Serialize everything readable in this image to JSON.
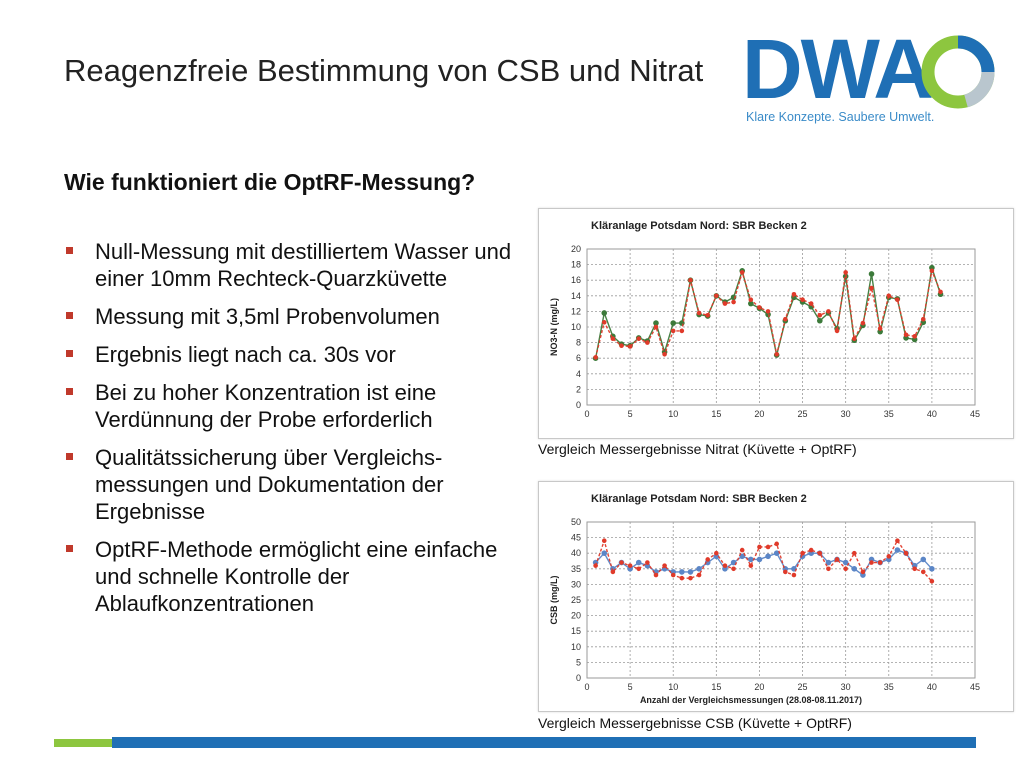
{
  "title": "Reagenzfreie Bestimmung von CSB und Nitrat",
  "subtitle": "Wie funktioniert die OptRF-Messung?",
  "logo": {
    "text": "DWA",
    "tagline": "Klare Konzepte. Saubere Umwelt."
  },
  "bullets": [
    "Null-Messung mit destilliertem Wasser und einer 10mm Rechteck-Quarzküvette",
    "Messung mit 3,5ml Probenvolumen",
    "Ergebnis liegt nach ca. 30s vor",
    "Bei zu hoher Konzentration ist eine Verdünnung der Probe erforderlich",
    "Qualitätssicherung über Vergleichs-messungen und Dokumentation der Ergebnisse",
    "OptRF-Methode ermöglicht eine einfache und schnelle Kontrolle der Ablaufkonzentrationen"
  ],
  "captions": {
    "nitrate": "Vergleich Messergebnisse Nitrat (Küvette + OptRF)",
    "csb": "Vergleich Messergebnisse CSB (Küvette + OptRF)"
  },
  "colors": {
    "accent_green": "#8dc63f",
    "accent_blue": "#1f6fb5",
    "series_red": "#e03a2a",
    "series_green": "#3c7a3a",
    "series_blue": "#5b86c7"
  },
  "chart_data": [
    {
      "type": "line",
      "title": "Kläranlage Potsdam Nord: SBR Becken 2",
      "xlabel": "",
      "ylabel": "NO3-N (mg/L)",
      "xlim": [
        0,
        45
      ],
      "ylim": [
        0,
        20
      ],
      "xticks": [
        0,
        5,
        10,
        15,
        20,
        25,
        30,
        35,
        40,
        45
      ],
      "yticks": [
        0,
        2,
        4,
        6,
        8,
        10,
        12,
        14,
        16,
        18,
        20
      ],
      "grid": true,
      "legend": "none",
      "x": [
        1,
        2,
        3,
        4,
        5,
        6,
        7,
        8,
        9,
        10,
        11,
        12,
        13,
        14,
        15,
        16,
        17,
        18,
        19,
        20,
        21,
        22,
        23,
        24,
        25,
        26,
        27,
        28,
        29,
        30,
        31,
        32,
        33,
        34,
        35,
        36,
        37,
        38,
        39,
        40,
        41
      ],
      "series": [
        {
          "values": [
            6.1,
            10.6,
            8.5,
            7.6,
            7.5,
            8.5,
            8.0,
            10.0,
            6.5,
            9.5,
            9.5,
            16.0,
            11.8,
            11.5,
            14.0,
            13.0,
            13.2,
            17.0,
            13.5,
            12.5,
            12.0,
            6.5,
            11.0,
            14.2,
            13.5,
            13.0,
            11.5,
            12.0,
            9.5,
            17.0,
            8.5,
            10.5,
            15.0,
            9.8,
            14.0,
            13.5,
            9.0,
            8.8,
            11.0,
            17.2,
            14.5
          ]
        },
        {
          "values": [
            6.0,
            11.8,
            8.8,
            7.8,
            7.6,
            8.6,
            8.2,
            10.5,
            6.8,
            10.5,
            10.5,
            16.0,
            11.6,
            11.4,
            14.0,
            13.2,
            13.8,
            17.2,
            13.0,
            12.4,
            11.6,
            6.4,
            10.8,
            13.8,
            13.2,
            12.6,
            10.8,
            11.8,
            9.8,
            16.5,
            8.3,
            10.2,
            16.8,
            9.4,
            13.8,
            13.6,
            8.6,
            8.4,
            10.6,
            17.6,
            14.2
          ]
        }
      ]
    },
    {
      "type": "line",
      "title": "Kläranlage Potsdam Nord: SBR Becken 2",
      "xlabel": "Anzahl der Vergleichsmessungen (28.08-08.11.2017)",
      "ylabel": "CSB (mg/L)",
      "xlim": [
        0,
        45
      ],
      "ylim": [
        0,
        50
      ],
      "xticks": [
        0,
        5,
        10,
        15,
        20,
        25,
        30,
        35,
        40,
        45
      ],
      "yticks": [
        0,
        5,
        10,
        15,
        20,
        25,
        30,
        35,
        40,
        45,
        50
      ],
      "grid": true,
      "legend": "none",
      "x": [
        1,
        2,
        3,
        4,
        5,
        6,
        7,
        8,
        9,
        10,
        11,
        12,
        13,
        14,
        15,
        16,
        17,
        18,
        19,
        20,
        21,
        22,
        23,
        24,
        25,
        26,
        27,
        28,
        29,
        30,
        31,
        32,
        33,
        34,
        35,
        36,
        37,
        38,
        39,
        40
      ],
      "series": [
        {
          "values": [
            36,
            44,
            34,
            37,
            36,
            35,
            37,
            33,
            36,
            33,
            32,
            32,
            33,
            38,
            40,
            36,
            35,
            41,
            36,
            42,
            42,
            43,
            34,
            33,
            40,
            41,
            40,
            35,
            38,
            35,
            40,
            34,
            37,
            37,
            39,
            44,
            40,
            35,
            34,
            31
          ]
        },
        {
          "values": [
            37,
            40,
            35,
            37,
            35,
            37,
            36,
            34,
            35,
            34,
            34,
            34,
            35,
            37,
            39,
            35,
            37,
            39,
            38,
            38,
            39,
            40,
            35,
            35,
            39,
            40,
            40,
            37,
            38,
            37,
            35,
            33,
            38,
            37,
            38,
            41,
            40,
            36,
            38,
            35
          ]
        }
      ]
    }
  ]
}
